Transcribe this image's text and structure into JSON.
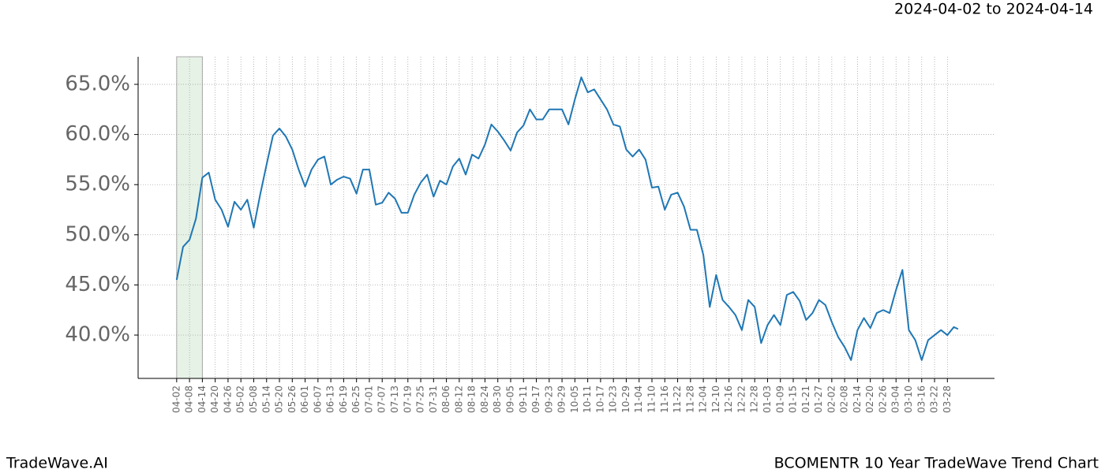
{
  "chart_data": {
    "type": "line",
    "title": "2024-04-02 to 2024-04-14",
    "brand": "TradeWave.AI",
    "chart_name": "BCOMENTR 10 Year TradeWave Trend Chart",
    "x": [
      0,
      3,
      6,
      9,
      12,
      15,
      18,
      21,
      24,
      27,
      30,
      33,
      36,
      39,
      42,
      45,
      48,
      51,
      54,
      57,
      60,
      63,
      66,
      69,
      72,
      75,
      78,
      81,
      84,
      87,
      90,
      93,
      96,
      99,
      102,
      105,
      108,
      111,
      114,
      117,
      120,
      123,
      126,
      129,
      132,
      135,
      138,
      141,
      144,
      147,
      150,
      153,
      156,
      159,
      162,
      165,
      168,
      171,
      174,
      177,
      180,
      183,
      186,
      189,
      192,
      195,
      198,
      201,
      204,
      207,
      210,
      213,
      216,
      219,
      222,
      225,
      228,
      231,
      234,
      237,
      240,
      243,
      246,
      249,
      252,
      255,
      258,
      261,
      264,
      267,
      270,
      273,
      276,
      279,
      282,
      285,
      288,
      291,
      294,
      297,
      300,
      303,
      306,
      309,
      312,
      315,
      318,
      321,
      324,
      327,
      330,
      333,
      336,
      339,
      342,
      345,
      348,
      351,
      354,
      357,
      360,
      363,
      365
    ],
    "series": [
      {
        "color": "#1f77b4",
        "values": [
          45.5,
          48.8,
          49.5,
          51.6,
          55.7,
          56.2,
          53.5,
          52.5,
          50.8,
          53.3,
          52.5,
          53.5,
          50.7,
          54,
          57,
          59.9,
          60.6,
          59.8,
          58.5,
          56.5,
          54.8,
          56.5,
          57.5,
          57.8,
          55,
          55.5,
          55.8,
          55.6,
          54.1,
          56.5,
          56.5,
          53,
          53.2,
          54.2,
          53.6,
          52.2,
          52.2,
          54,
          55.2,
          56,
          53.8,
          55.4,
          55,
          56.8,
          57.6,
          56,
          58,
          57.6,
          59,
          61,
          60.3,
          59.4,
          58.4,
          60.2,
          60.9,
          62.5,
          61.5,
          61.5,
          62.5,
          62.5,
          62.5,
          61,
          63.5,
          65.7,
          64.2,
          64.5,
          63.5,
          62.5,
          61,
          60.8,
          58.5,
          57.8,
          58.5,
          57.5,
          54.7,
          54.8,
          52.5,
          54,
          54.2,
          52.8,
          50.5,
          50.5,
          48,
          42.8,
          46,
          43.5,
          42.8,
          42,
          40.5,
          43.5,
          42.8,
          39.2,
          41,
          42,
          41,
          44,
          44.3,
          43.4,
          41.5,
          42.2,
          43.5,
          43,
          41.3,
          39.8,
          38.8,
          37.5,
          40.5,
          41.7,
          40.7,
          42.2,
          42.5,
          42.2,
          44.5,
          46.5,
          40.5,
          39.5,
          37.5,
          39.5,
          40,
          40.5,
          40,
          40.8,
          40.6
        ]
      }
    ],
    "shaded_range": [
      0,
      12
    ],
    "shade_color": "#e6f2e6",
    "xlim": [
      -18,
      382
    ],
    "xticks": [
      {
        "value": 0,
        "label": "04-02"
      },
      {
        "value": 6,
        "label": "04-08"
      },
      {
        "value": 12,
        "label": "04-14"
      },
      {
        "value": 18,
        "label": "04-20"
      },
      {
        "value": 24,
        "label": "04-26"
      },
      {
        "value": 30,
        "label": "05-02"
      },
      {
        "value": 36,
        "label": "05-08"
      },
      {
        "value": 42,
        "label": "05-14"
      },
      {
        "value": 48,
        "label": "05-20"
      },
      {
        "value": 54,
        "label": "05-26"
      },
      {
        "value": 60,
        "label": "06-01"
      },
      {
        "value": 66,
        "label": "06-07"
      },
      {
        "value": 72,
        "label": "06-13"
      },
      {
        "value": 78,
        "label": "06-19"
      },
      {
        "value": 84,
        "label": "06-25"
      },
      {
        "value": 90,
        "label": "07-01"
      },
      {
        "value": 96,
        "label": "07-07"
      },
      {
        "value": 102,
        "label": "07-13"
      },
      {
        "value": 108,
        "label": "07-19"
      },
      {
        "value": 114,
        "label": "07-25"
      },
      {
        "value": 120,
        "label": "07-31"
      },
      {
        "value": 126,
        "label": "08-06"
      },
      {
        "value": 132,
        "label": "08-12"
      },
      {
        "value": 138,
        "label": "08-18"
      },
      {
        "value": 144,
        "label": "08-24"
      },
      {
        "value": 150,
        "label": "08-30"
      },
      {
        "value": 156,
        "label": "09-05"
      },
      {
        "value": 162,
        "label": "09-11"
      },
      {
        "value": 168,
        "label": "09-17"
      },
      {
        "value": 174,
        "label": "09-23"
      },
      {
        "value": 180,
        "label": "09-29"
      },
      {
        "value": 186,
        "label": "10-05"
      },
      {
        "value": 192,
        "label": "10-11"
      },
      {
        "value": 198,
        "label": "10-17"
      },
      {
        "value": 204,
        "label": "10-23"
      },
      {
        "value": 210,
        "label": "10-29"
      },
      {
        "value": 216,
        "label": "11-04"
      },
      {
        "value": 222,
        "label": "11-10"
      },
      {
        "value": 228,
        "label": "11-16"
      },
      {
        "value": 234,
        "label": "11-22"
      },
      {
        "value": 240,
        "label": "11-28"
      },
      {
        "value": 246,
        "label": "12-04"
      },
      {
        "value": 252,
        "label": "12-10"
      },
      {
        "value": 258,
        "label": "12-16"
      },
      {
        "value": 264,
        "label": "12-22"
      },
      {
        "value": 270,
        "label": "12-28"
      },
      {
        "value": 276,
        "label": "01-03"
      },
      {
        "value": 282,
        "label": "01-09"
      },
      {
        "value": 288,
        "label": "01-15"
      },
      {
        "value": 294,
        "label": "01-21"
      },
      {
        "value": 300,
        "label": "01-27"
      },
      {
        "value": 306,
        "label": "02-02"
      },
      {
        "value": 312,
        "label": "02-08"
      },
      {
        "value": 318,
        "label": "02-14"
      },
      {
        "value": 324,
        "label": "02-20"
      },
      {
        "value": 330,
        "label": "02-26"
      },
      {
        "value": 336,
        "label": "03-04"
      },
      {
        "value": 342,
        "label": "03-10"
      },
      {
        "value": 348,
        "label": "03-16"
      },
      {
        "value": 354,
        "label": "03-22"
      },
      {
        "value": 360,
        "label": "03-28"
      }
    ],
    "ylim": [
      35.68,
      67.75
    ],
    "yticks": [
      {
        "value": 40,
        "label": "40.0%"
      },
      {
        "value": 45,
        "label": "45.0%"
      },
      {
        "value": 50,
        "label": "50.0%"
      },
      {
        "value": 55,
        "label": "55.0%"
      },
      {
        "value": 60,
        "label": "60.0%"
      },
      {
        "value": 65,
        "label": "65.0%"
      }
    ],
    "grid": true
  }
}
